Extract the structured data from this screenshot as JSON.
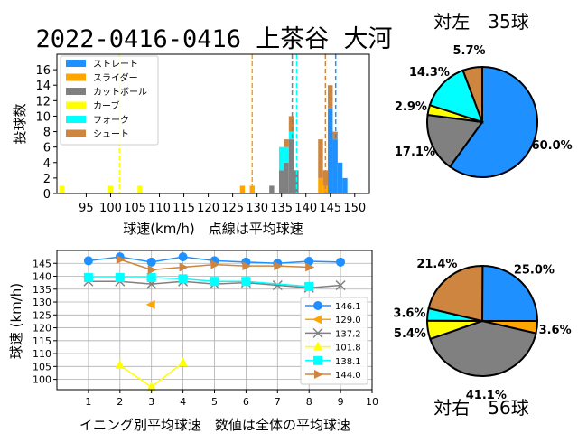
{
  "title": "2022-0416-0416 上茶谷 大河",
  "colors": {
    "ストレート": "#1e90ff",
    "スライダー": "#ffa500",
    "カットボール": "#808080",
    "カーブ": "#ffff00",
    "フォーク": "#00ffff",
    "シュート": "#cd853f"
  },
  "chart_data": [
    {
      "type": "bar",
      "chart_id": "speed_histogram",
      "xlabel": "球速(km/h)　点線は平均球速",
      "ylabel": "投球数",
      "xlim": [
        89,
        153
      ],
      "ylim": [
        0,
        18
      ],
      "xticks": [
        95,
        100,
        105,
        110,
        115,
        120,
        125,
        130,
        135,
        140,
        145,
        150
      ],
      "xtick_labels": [
        "95",
        "100",
        "105",
        "110",
        "115",
        "120",
        "125",
        "130",
        "135",
        "140",
        "145",
        "150"
      ],
      "yticks": [
        0,
        2,
        4,
        6,
        8,
        10,
        12,
        14,
        16
      ],
      "legend": [
        "ストレート",
        "スライダー",
        "カットボール",
        "カーブ",
        "フォーク",
        "シュート"
      ],
      "legend_position": "top-left",
      "bin_width": 1,
      "stacked": true,
      "bins": [
        {
          "x": 90,
          "カーブ": 1
        },
        {
          "x": 100,
          "カーブ": 1
        },
        {
          "x": 106,
          "カーブ": 1
        },
        {
          "x": 127,
          "スライダー": 1
        },
        {
          "x": 129,
          "スライダー": 1
        },
        {
          "x": 133,
          "カットボール": 1
        },
        {
          "x": 135,
          "カットボール": 3,
          "フォーク": 3
        },
        {
          "x": 136,
          "カットボール": 4,
          "フォーク": 2,
          "シュート": 1
        },
        {
          "x": 137,
          "カットボール": 7,
          "フォーク": 1,
          "シュート": 2
        },
        {
          "x": 138,
          "カットボール": 3
        },
        {
          "x": 143,
          "スライダー": 2,
          "シュート": 5
        },
        {
          "x": 144,
          "スライダー": 1,
          "シュート": 2
        },
        {
          "x": 145,
          "ストレート": 11,
          "シュート": 3
        },
        {
          "x": 146,
          "ストレート": 7,
          "シュート": 1
        },
        {
          "x": 147,
          "ストレート": 4
        },
        {
          "x": 148,
          "ストレート": 2
        }
      ],
      "averages": [
        {
          "name": "ストレート",
          "value": 146.1
        },
        {
          "name": "スライダー",
          "value": 129.0
        },
        {
          "name": "カットボール",
          "value": 137.2
        },
        {
          "name": "カーブ",
          "value": 101.8
        },
        {
          "name": "フォーク",
          "value": 138.1
        },
        {
          "name": "シュート",
          "value": 144.0
        }
      ]
    },
    {
      "type": "line",
      "chart_id": "inning_average",
      "xlabel": "イニング別平均球速　数値は全体の平均球速",
      "ylabel": "球速 (km/h)",
      "xlim": [
        0,
        10
      ],
      "ylim": [
        96,
        150
      ],
      "xticks": [
        1,
        2,
        3,
        4,
        5,
        6,
        7,
        8,
        9,
        10
      ],
      "yticks": [
        100,
        105,
        110,
        115,
        120,
        125,
        130,
        135,
        140,
        145
      ],
      "grid": true,
      "legend_position": "right",
      "series": [
        {
          "name": "146.1",
          "marker": "circle",
          "color_key": "ストレート",
          "points": [
            [
              1,
              146.0
            ],
            [
              2,
              147.5
            ],
            [
              3,
              145.5
            ],
            [
              4,
              147.5
            ],
            [
              5,
              146.0
            ],
            [
              6,
              145.5
            ],
            [
              7,
              145.0
            ],
            [
              8,
              145.8
            ],
            [
              9,
              145.5
            ]
          ]
        },
        {
          "name": "129.0",
          "marker": "triangle-left",
          "color_key": "スライダー",
          "points": [
            [
              3,
              129.0
            ]
          ]
        },
        {
          "name": "137.2",
          "marker": "x",
          "color_key": "カットボール",
          "points": [
            [
              1,
              138.0
            ],
            [
              2,
              138.0
            ],
            [
              3,
              137.0
            ],
            [
              4,
              138.0
            ],
            [
              5,
              137.0
            ],
            [
              6,
              137.5
            ],
            [
              7,
              136.5
            ],
            [
              8,
              135.5
            ],
            [
              9,
              136.5
            ]
          ]
        },
        {
          "name": "101.8",
          "marker": "triangle-up",
          "color_key": "カーブ",
          "points": [
            [
              2,
              105.5
            ],
            [
              3,
              97.0
            ],
            [
              4,
              106.5
            ]
          ]
        },
        {
          "name": "138.1",
          "marker": "square",
          "color_key": "フォーク",
          "points": [
            [
              1,
              139.5
            ],
            [
              2,
              139.5
            ],
            [
              3,
              139.5
            ],
            [
              4,
              139.0
            ],
            [
              5,
              138.0
            ],
            [
              6,
              138.0
            ],
            [
              8,
              136.0
            ]
          ]
        },
        {
          "name": "144.0",
          "marker": "triangle-right",
          "color_key": "シュート",
          "points": [
            [
              2,
              146.5
            ],
            [
              3,
              142.5
            ],
            [
              4,
              143.5
            ],
            [
              5,
              144.5
            ],
            [
              6,
              144.0
            ],
            [
              7,
              144.0
            ],
            [
              8,
              143.5
            ]
          ]
        }
      ]
    },
    {
      "type": "pie",
      "chart_id": "pie_left",
      "title": "対左　35球",
      "slices": [
        {
          "name": "ストレート",
          "value": 60.0,
          "label": "60.0%"
        },
        {
          "name": "カットボール",
          "value": 17.1,
          "label": "17.1%"
        },
        {
          "name": "カーブ",
          "value": 2.9,
          "label": "2.9%"
        },
        {
          "name": "フォーク",
          "value": 14.3,
          "label": "14.3%"
        },
        {
          "name": "シュート",
          "value": 5.7,
          "label": "5.7%"
        }
      ]
    },
    {
      "type": "pie",
      "chart_id": "pie_right",
      "title": "対右　56球",
      "slices": [
        {
          "name": "ストレート",
          "value": 25.0,
          "label": "25.0%"
        },
        {
          "name": "スライダー",
          "value": 3.6,
          "label": "3.6%"
        },
        {
          "name": "カットボール",
          "value": 41.1,
          "label": "41.1%"
        },
        {
          "name": "カーブ",
          "value": 5.4,
          "label": "5.4%"
        },
        {
          "name": "フォーク",
          "value": 3.6,
          "label": "3.6%"
        },
        {
          "name": "シュート",
          "value": 21.4,
          "label": "21.4%"
        }
      ]
    }
  ]
}
